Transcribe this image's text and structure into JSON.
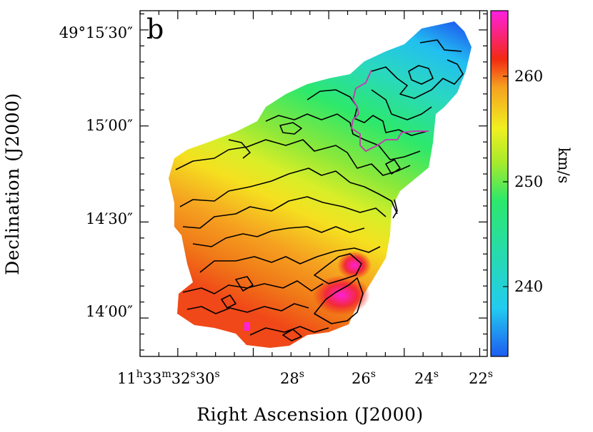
{
  "chart_data": {
    "type": "heatmap",
    "panel_label": "b",
    "xlabel": "Right Ascension (J2000)",
    "ylabel": "Declination (J2000)",
    "x_ticks": [
      {
        "label": "11h33m32s30s",
        "text": {
          "h": "11",
          "hs": "h",
          "m": "33",
          "ms": "m",
          "s1": "32",
          "ss1": "s",
          "s2": "30",
          "ss2": "s"
        },
        "value_s": 30
      },
      {
        "label": "28s",
        "text": {
          "n": "28",
          "s": "s"
        },
        "value_s": 28
      },
      {
        "label": "26s",
        "text": {
          "n": "26",
          "s": "s"
        },
        "value_s": 26
      },
      {
        "label": "24s",
        "text": {
          "n": "24",
          "s": "s"
        },
        "value_s": 24
      },
      {
        "label": "22s",
        "text": {
          "n": "22",
          "s": "s"
        },
        "value_s": 22
      }
    ],
    "xlim_seconds": [
      31.0,
      21.8
    ],
    "y_ticks": [
      {
        "label": "49°15′30″",
        "value_arcsec_offset": 90
      },
      {
        "label": "15′00″",
        "value_arcsec_offset": 60
      },
      {
        "label": "14′30″",
        "value_arcsec_offset": 30
      },
      {
        "label": "14′00″",
        "value_arcsec_offset": 0
      }
    ],
    "ylim_arcsec_offset": [
      -12,
      96
    ],
    "colorbar": {
      "label": "km/s",
      "ticks": [
        "260",
        "250",
        "240"
      ],
      "tick_values": [
        260,
        250,
        240
      ],
      "range": [
        233,
        266
      ],
      "colors": [
        "#1e5cf0",
        "#22ccf0",
        "#2ce86c",
        "#a6ea2c",
        "#f0f020",
        "#f5a020",
        "#f22a12",
        "#ff20e0"
      ]
    },
    "contour_colors": {
      "velocity": "#000000",
      "overlay": "#c040b0"
    },
    "gradient": "velocity increases from NE (top-right, ~237 km/s) to SW (bottom, ~262 km/s)"
  }
}
